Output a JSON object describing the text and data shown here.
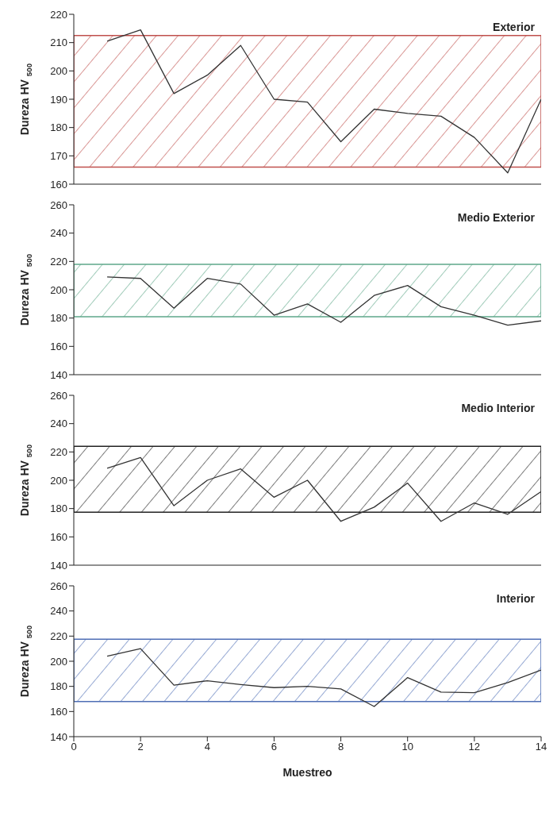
{
  "chart_data": [
    {
      "type": "line",
      "title": "Exterior",
      "ylabel": "Dureza HV $_{500}$",
      "xlim": [
        0,
        14
      ],
      "xticks": [
        0,
        2,
        4,
        6,
        8,
        10,
        12,
        14
      ],
      "ylim": [
        160,
        220
      ],
      "yticks": [
        160,
        170,
        180,
        190,
        200,
        210,
        220
      ],
      "tick_labels": "y",
      "marker": "none",
      "line_style": "solid",
      "grid": false,
      "legend": false,
      "bands": [
        {
          "axis": "y",
          "from": 166,
          "to": 212.5,
          "color": "#c0504d"
        }
      ],
      "series": [
        {
          "color": "#333333",
          "x": [
            1,
            2,
            3,
            4,
            5,
            6,
            7,
            8,
            9,
            10,
            11,
            12,
            13,
            14
          ],
          "values": [
            210.5,
            214.5,
            192,
            198.5,
            209,
            190,
            189,
            175,
            186.5,
            185,
            184,
            176.5,
            164,
            190
          ]
        }
      ]
    },
    {
      "type": "line",
      "title": "Medio Exterior",
      "ylabel": "Dureza HV $_{500}$",
      "xlim": [
        0,
        14
      ],
      "xticks": [
        0,
        2,
        4,
        6,
        8,
        10,
        12,
        14
      ],
      "ylim": [
        140,
        260
      ],
      "yticks": [
        140,
        160,
        180,
        200,
        220,
        240,
        260
      ],
      "tick_labels": "y",
      "marker": "none",
      "line_style": "solid",
      "grid": false,
      "legend": false,
      "bands": [
        {
          "axis": "y",
          "from": 181,
          "to": 218,
          "color": "#5fa88a"
        }
      ],
      "series": [
        {
          "color": "#333333",
          "x": [
            1,
            2,
            3,
            4,
            5,
            6,
            7,
            8,
            9,
            10,
            11,
            12,
            13,
            14
          ],
          "values": [
            209,
            208,
            187,
            208,
            204,
            182,
            190,
            177,
            196,
            203,
            188,
            182,
            175,
            178
          ]
        }
      ]
    },
    {
      "type": "line",
      "title": "Medio Interior",
      "ylabel": "Dureza HV $_{500}$",
      "xlim": [
        0,
        14
      ],
      "xticks": [
        0,
        2,
        4,
        6,
        8,
        10,
        12,
        14
      ],
      "ylim": [
        140,
        260
      ],
      "yticks": [
        140,
        160,
        180,
        200,
        220,
        240,
        260
      ],
      "tick_labels": "y",
      "marker": "none",
      "line_style": "solid",
      "grid": false,
      "legend": false,
      "bands": [
        {
          "axis": "y",
          "from": 177.5,
          "to": 224,
          "color": "#222222"
        }
      ],
      "series": [
        {
          "color": "#333333",
          "x": [
            1,
            2,
            3,
            4,
            5,
            6,
            7,
            8,
            9,
            10,
            11,
            12,
            13,
            14
          ],
          "values": [
            208.5,
            216,
            182,
            200,
            208,
            188,
            200,
            171,
            181,
            198,
            171,
            184,
            176,
            192
          ]
        }
      ]
    },
    {
      "type": "line",
      "title": "Interior",
      "ylabel": "Dureza HV $_{500}$",
      "xlabel": "Muestreo",
      "xlim": [
        0,
        14
      ],
      "xticks": [
        0,
        2,
        4,
        6,
        8,
        10,
        12,
        14
      ],
      "ylim": [
        140,
        260
      ],
      "yticks": [
        140,
        160,
        180,
        200,
        220,
        240,
        260
      ],
      "marker": "none",
      "line_style": "solid",
      "grid": false,
      "legend": false,
      "bands": [
        {
          "axis": "y",
          "from": 168,
          "to": 217.5,
          "color": "#4f6fb5"
        }
      ],
      "series": [
        {
          "color": "#333333",
          "x": [
            1,
            2,
            3,
            4,
            5,
            6,
            7,
            8,
            9,
            10,
            11,
            12,
            13,
            14
          ],
          "values": [
            204,
            210,
            181,
            184.5,
            181.5,
            179,
            180,
            178,
            164,
            187,
            175.5,
            175,
            183,
            193
          ]
        }
      ]
    }
  ]
}
